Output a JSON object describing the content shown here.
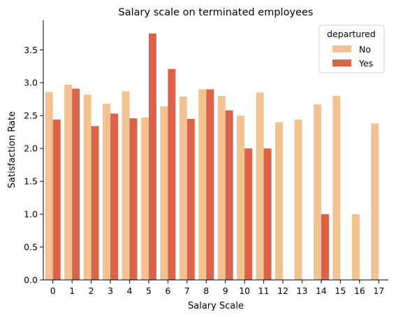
{
  "chart_data": {
    "type": "bar",
    "title": "Salary scale on terminated employees",
    "xlabel": "Salary Scale",
    "ylabel": "Satisfaction Rate",
    "categories": [
      "0",
      "1",
      "2",
      "3",
      "4",
      "5",
      "6",
      "7",
      "8",
      "9",
      "10",
      "11",
      "12",
      "13",
      "14",
      "15",
      "16",
      "17"
    ],
    "ylim": [
      0,
      3.95
    ],
    "yticks": [
      "0.0",
      "0.5",
      "1.0",
      "1.5",
      "2.0",
      "2.5",
      "3.0",
      "3.5"
    ],
    "legend": {
      "title": "departured",
      "position": "top-right"
    },
    "series": [
      {
        "name": "No",
        "color": "#f2c290",
        "values": [
          2.86,
          2.97,
          2.82,
          2.68,
          2.87,
          2.47,
          2.64,
          2.79,
          2.9,
          2.8,
          2.5,
          2.85,
          2.4,
          2.44,
          2.67,
          2.8,
          1.0,
          2.38
        ]
      },
      {
        "name": "Yes",
        "color": "#d9634b",
        "values": [
          2.44,
          2.91,
          2.34,
          2.53,
          2.46,
          3.75,
          3.21,
          2.45,
          2.9,
          2.58,
          2.0,
          2.0,
          null,
          null,
          1.0,
          null,
          null,
          null
        ]
      }
    ]
  }
}
